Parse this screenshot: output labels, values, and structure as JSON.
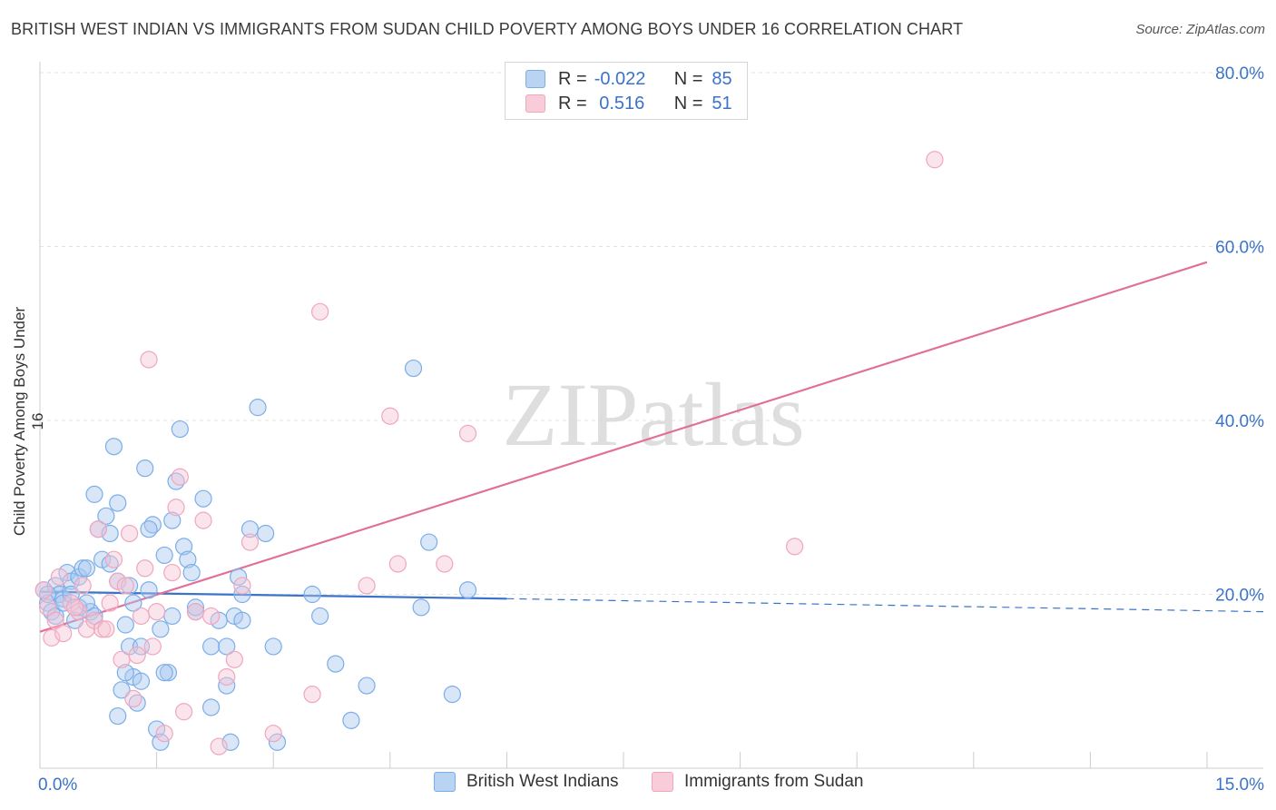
{
  "chart_data": {
    "type": "scatter",
    "title": "BRITISH WEST INDIAN VS IMMIGRANTS FROM SUDAN CHILD POVERTY AMONG BOYS UNDER 16 CORRELATION CHART",
    "source": "Source: ZipAtlas.com",
    "ylabel": "Child Poverty Among Boys Under 16",
    "xlabel": "",
    "xlim": [
      0,
      15
    ],
    "ylim": [
      0,
      80
    ],
    "x_tick_labels": [
      "0.0%",
      "15.0%"
    ],
    "y_ticks": [
      20,
      40,
      60,
      80
    ],
    "y_tick_labels": [
      "20.0%",
      "40.0%",
      "60.0%",
      "80.0%"
    ],
    "grid": true,
    "watermark": "ZIPatlas",
    "legend": {
      "rows": [
        {
          "r_label": "R =",
          "r_value": "-0.022",
          "n_label": "N =",
          "n_value": "85"
        },
        {
          "r_label": "R =",
          "r_value": " 0.516",
          "n_label": "N =",
          "n_value": "51"
        }
      ]
    },
    "series": [
      {
        "name": "British West Indians",
        "color": "#7baee8",
        "fill": "#a9c8f0",
        "line_color": "#3a73c9",
        "trend": {
          "x0": 0,
          "y0": 20.3,
          "x1": 6.0,
          "y1": 19.5,
          "dash_to_x": 15,
          "dash_to_y": 18.0
        },
        "points": [
          [
            0.05,
            20.5
          ],
          [
            0.1,
            19
          ],
          [
            0.15,
            18
          ],
          [
            0.2,
            21
          ],
          [
            0.25,
            20
          ],
          [
            0.3,
            19.5
          ],
          [
            0.35,
            22.5
          ],
          [
            0.4,
            21.5
          ],
          [
            0.45,
            17
          ],
          [
            0.5,
            22
          ],
          [
            0.55,
            23
          ],
          [
            0.6,
            23
          ],
          [
            0.65,
            18
          ],
          [
            0.7,
            31.5
          ],
          [
            0.75,
            27.5
          ],
          [
            0.8,
            24
          ],
          [
            0.85,
            29
          ],
          [
            0.9,
            23.5
          ],
          [
            0.95,
            37
          ],
          [
            1.0,
            30.5
          ],
          [
            0.1,
            20
          ],
          [
            0.2,
            17.5
          ],
          [
            0.3,
            19
          ],
          [
            0.4,
            20
          ],
          [
            0.5,
            18.5
          ],
          [
            0.6,
            19
          ],
          [
            0.7,
            17.5
          ],
          [
            1.0,
            6
          ],
          [
            1.05,
            9
          ],
          [
            1.1,
            16.5
          ],
          [
            1.15,
            14
          ],
          [
            1.2,
            10.5
          ],
          [
            1.25,
            7.5
          ],
          [
            1.3,
            10
          ],
          [
            1.35,
            34.5
          ],
          [
            1.4,
            20.5
          ],
          [
            1.45,
            28
          ],
          [
            1.5,
            4.5
          ],
          [
            1.55,
            16
          ],
          [
            1.6,
            24.5
          ],
          [
            1.65,
            11
          ],
          [
            1.7,
            28.5
          ],
          [
            1.75,
            33
          ],
          [
            1.8,
            39
          ],
          [
            1.85,
            25.5
          ],
          [
            1.9,
            24
          ],
          [
            1.95,
            22.5
          ],
          [
            2.0,
            18
          ],
          [
            2.1,
            31
          ],
          [
            2.2,
            14
          ],
          [
            2.3,
            17
          ],
          [
            2.4,
            9.5
          ],
          [
            2.45,
            3
          ],
          [
            2.5,
            17.5
          ],
          [
            2.55,
            22
          ],
          [
            2.6,
            20
          ],
          [
            2.7,
            27.5
          ],
          [
            2.8,
            41.5
          ],
          [
            2.9,
            27
          ],
          [
            3.0,
            14
          ],
          [
            3.05,
            3
          ],
          [
            3.5,
            20
          ],
          [
            3.6,
            17.5
          ],
          [
            3.8,
            12
          ],
          [
            4.0,
            5.5
          ],
          [
            4.2,
            9.5
          ],
          [
            4.8,
            46
          ],
          [
            4.9,
            18.5
          ],
          [
            5.0,
            26
          ],
          [
            5.3,
            8.5
          ],
          [
            5.5,
            20.5
          ],
          [
            1.0,
            21.5
          ],
          [
            1.1,
            11
          ],
          [
            1.2,
            19
          ],
          [
            1.3,
            14
          ],
          [
            1.4,
            27.5
          ],
          [
            1.6,
            11
          ],
          [
            1.7,
            17.5
          ],
          [
            2.0,
            18.5
          ],
          [
            2.2,
            7
          ],
          [
            2.4,
            14
          ],
          [
            2.6,
            17
          ],
          [
            0.9,
            27
          ],
          [
            1.15,
            21
          ],
          [
            1.55,
            3
          ]
        ]
      },
      {
        "name": "Immigrants from Sudan",
        "color": "#f0a6bd",
        "fill": "#f7c6d5",
        "line_color": "#e0709a",
        "trend": {
          "x0": 0,
          "y0": 15.7,
          "x1": 15,
          "y1": 58.2
        },
        "points": [
          [
            0.05,
            20.5
          ],
          [
            0.1,
            18.5
          ],
          [
            0.15,
            15
          ],
          [
            0.2,
            17
          ],
          [
            0.3,
            15.5
          ],
          [
            0.4,
            19
          ],
          [
            0.5,
            18
          ],
          [
            0.55,
            21
          ],
          [
            0.6,
            16
          ],
          [
            0.7,
            17
          ],
          [
            0.8,
            16
          ],
          [
            0.85,
            16
          ],
          [
            0.9,
            19
          ],
          [
            0.95,
            24
          ],
          [
            1.0,
            21.5
          ],
          [
            1.05,
            12.5
          ],
          [
            1.1,
            21
          ],
          [
            1.15,
            27
          ],
          [
            1.2,
            8
          ],
          [
            1.25,
            13
          ],
          [
            1.3,
            17.5
          ],
          [
            1.35,
            23
          ],
          [
            1.4,
            47
          ],
          [
            1.45,
            14
          ],
          [
            1.5,
            18
          ],
          [
            1.6,
            4
          ],
          [
            1.7,
            22.5
          ],
          [
            1.75,
            30
          ],
          [
            1.8,
            33.5
          ],
          [
            1.85,
            6.5
          ],
          [
            2.0,
            18
          ],
          [
            2.1,
            28.5
          ],
          [
            2.2,
            17.5
          ],
          [
            2.3,
            2.5
          ],
          [
            2.4,
            10.5
          ],
          [
            2.5,
            12.5
          ],
          [
            2.6,
            21
          ],
          [
            2.7,
            26
          ],
          [
            3.0,
            4
          ],
          [
            3.5,
            8.5
          ],
          [
            3.6,
            52.5
          ],
          [
            4.2,
            21
          ],
          [
            4.5,
            40.5
          ],
          [
            4.6,
            23.5
          ],
          [
            5.2,
            23.5
          ],
          [
            5.5,
            38.5
          ],
          [
            9.7,
            25.5
          ],
          [
            11.5,
            70
          ],
          [
            0.25,
            22
          ],
          [
            0.45,
            18.5
          ],
          [
            0.75,
            27.5
          ]
        ]
      }
    ]
  }
}
